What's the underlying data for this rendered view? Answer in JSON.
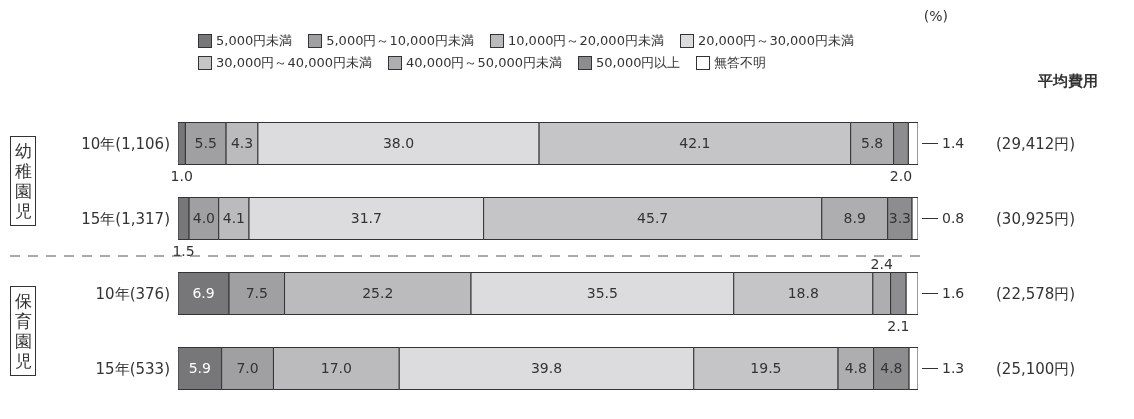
{
  "chart_data": {
    "type": "bar",
    "orientation": "horizontal",
    "stacked": true,
    "legend": "top",
    "xlim": [
      0,
      100
    ],
    "categories": [
      "10年(1,106)",
      "15年(1,317)",
      "10年(376)",
      "15年(533)"
    ],
    "series": [
      {
        "name": "5,000円未満",
        "color": "#77777a",
        "values": [
          1.0,
          1.5,
          6.9,
          5.9
        ],
        "value_labels": [
          "1.0",
          "1.5",
          "6.9",
          "5.9"
        ]
      },
      {
        "name": "5,000円～10,000円未満",
        "color": "#a0a0a3",
        "values": [
          5.5,
          4.0,
          7.5,
          7.0
        ],
        "value_labels": [
          "5.5",
          "4.0",
          "7.5",
          "7.0"
        ]
      },
      {
        "name": "10,000円～20,000円未満",
        "color": "#bbbbbe",
        "values": [
          4.3,
          4.1,
          25.2,
          17.0
        ],
        "value_labels": [
          "4.3",
          "4.1",
          "25.2",
          "17.0"
        ]
      },
      {
        "name": "20,000円～30,000円未満",
        "color": "#dcdcde",
        "values": [
          38.0,
          31.7,
          35.5,
          39.8
        ],
        "value_labels": [
          "38.0",
          "31.7",
          "35.5",
          "39.8"
        ]
      },
      {
        "name": "30,000円～40,000円未満",
        "color": "#c5c5c7",
        "values": [
          42.1,
          45.7,
          18.8,
          19.5
        ],
        "value_labels": [
          "42.1",
          "45.7",
          "18.8",
          "19.5"
        ]
      },
      {
        "name": "40,000円～50,000円未満",
        "color": "#aeaeb1",
        "values": [
          5.8,
          8.9,
          2.4,
          4.8
        ],
        "value_labels": [
          "5.8",
          "8.9",
          "2.4",
          "4.8"
        ]
      },
      {
        "name": "50,000円以上",
        "color": "#8d8d90",
        "values": [
          2.0,
          3.3,
          2.1,
          4.8
        ],
        "value_labels": [
          "2.0",
          "3.3",
          "2.1",
          "4.8"
        ]
      },
      {
        "name": "無答不明",
        "color": "#ffffff",
        "values": [
          1.4,
          0.8,
          1.6,
          1.3
        ],
        "value_labels": [
          "1.4",
          "0.8",
          "1.6",
          "1.3"
        ]
      }
    ],
    "annotations": [
      "(%)",
      "平均費用",
      "幼稚園児",
      "保育園児",
      "(29,412円)",
      "(30,925円)",
      "(22,578円)",
      "(25,100円)"
    ]
  }
}
